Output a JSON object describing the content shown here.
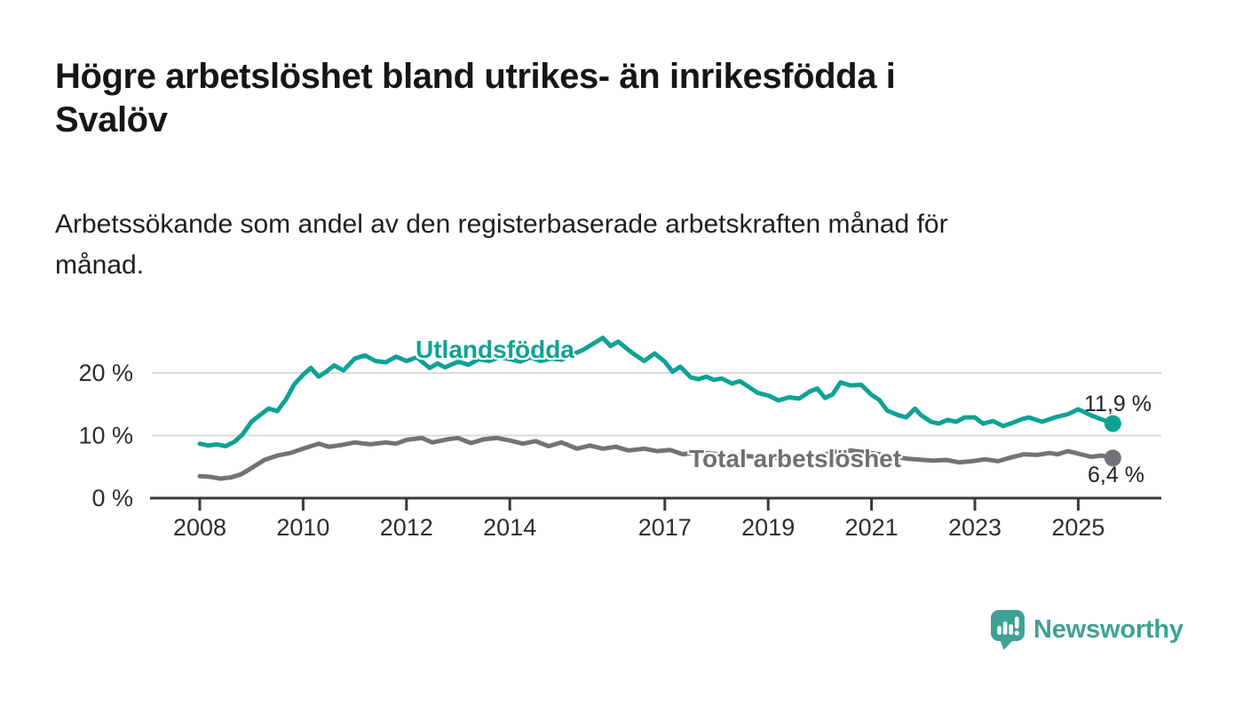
{
  "header": {
    "title_line1": "Högre arbetslöshet bland utrikes- än inrikesfödda i",
    "title_line2": "Svalöv",
    "subtitle_line1": "Arbetssökande som andel av den registerbaserade arbetskraften månad för",
    "subtitle_line2": "månad."
  },
  "chart_data": {
    "type": "line",
    "title": "Högre arbetslöshet bland utrikes- än inrikesfödda i Svalöv",
    "subtitle": "Arbetssökande som andel av den registerbaserade arbetskraften månad för månad.",
    "unit": "%",
    "grid": "horizontal",
    "x_axis": {
      "ticks": [
        {
          "year": 2008,
          "label": "2008"
        },
        {
          "year": 2010,
          "label": "2010"
        },
        {
          "year": 2012,
          "label": "2012"
        },
        {
          "year": 2014,
          "label": "2014"
        },
        {
          "year": 2017,
          "label": "2017"
        },
        {
          "year": 2019,
          "label": "2019"
        },
        {
          "year": 2021,
          "label": "2021"
        },
        {
          "year": 2023,
          "label": "2023"
        },
        {
          "year": 2025,
          "label": "2025"
        }
      ]
    },
    "y_axis": {
      "ticks": [
        {
          "value": 0,
          "label": "0 %"
        },
        {
          "value": 10,
          "label": "10 %"
        },
        {
          "value": 20,
          "label": "20 %"
        }
      ],
      "range": [
        0,
        27
      ]
    },
    "series": [
      {
        "name": "Utlandsfödda",
        "color": "#0FA294",
        "end_label": "11,9 %",
        "end_value": 11.9,
        "points": [
          [
            2008.0,
            8.7
          ],
          [
            2008.17,
            8.4
          ],
          [
            2008.33,
            8.6
          ],
          [
            2008.5,
            8.3
          ],
          [
            2008.67,
            9.0
          ],
          [
            2008.83,
            10.2
          ],
          [
            2009.0,
            12.2
          ],
          [
            2009.17,
            13.3
          ],
          [
            2009.33,
            14.3
          ],
          [
            2009.5,
            13.9
          ],
          [
            2009.67,
            15.8
          ],
          [
            2009.83,
            18.2
          ],
          [
            2010.0,
            19.7
          ],
          [
            2010.15,
            20.8
          ],
          [
            2010.3,
            19.4
          ],
          [
            2010.45,
            20.2
          ],
          [
            2010.6,
            21.2
          ],
          [
            2010.78,
            20.4
          ],
          [
            2011.0,
            22.3
          ],
          [
            2011.2,
            22.8
          ],
          [
            2011.4,
            21.9
          ],
          [
            2011.6,
            21.7
          ],
          [
            2011.8,
            22.6
          ],
          [
            2012.0,
            21.9
          ],
          [
            2012.2,
            22.5
          ],
          [
            2012.45,
            20.8
          ],
          [
            2012.6,
            21.5
          ],
          [
            2012.75,
            20.9
          ],
          [
            2013.0,
            21.8
          ],
          [
            2013.2,
            21.3
          ],
          [
            2013.4,
            22.2
          ],
          [
            2013.6,
            21.9
          ],
          [
            2013.8,
            22.5
          ],
          [
            2014.0,
            22.2
          ],
          [
            2014.2,
            21.8
          ],
          [
            2014.4,
            22.5
          ],
          [
            2014.6,
            21.9
          ],
          [
            2014.8,
            22.3
          ],
          [
            2015.0,
            22.1
          ],
          [
            2015.2,
            22.9
          ],
          [
            2015.4,
            23.6
          ],
          [
            2015.6,
            24.6
          ],
          [
            2015.8,
            25.6
          ],
          [
            2015.95,
            24.3
          ],
          [
            2016.1,
            25.0
          ],
          [
            2016.35,
            23.3
          ],
          [
            2016.6,
            21.9
          ],
          [
            2016.8,
            23.1
          ],
          [
            2017.0,
            21.8
          ],
          [
            2017.15,
            20.2
          ],
          [
            2017.3,
            21.0
          ],
          [
            2017.5,
            19.3
          ],
          [
            2017.65,
            19.0
          ],
          [
            2017.8,
            19.4
          ],
          [
            2017.95,
            18.9
          ],
          [
            2018.1,
            19.1
          ],
          [
            2018.3,
            18.3
          ],
          [
            2018.45,
            18.7
          ],
          [
            2018.6,
            17.9
          ],
          [
            2018.8,
            16.8
          ],
          [
            2019.0,
            16.4
          ],
          [
            2019.2,
            15.6
          ],
          [
            2019.4,
            16.1
          ],
          [
            2019.6,
            15.9
          ],
          [
            2019.8,
            17.0
          ],
          [
            2019.95,
            17.5
          ],
          [
            2020.1,
            16.0
          ],
          [
            2020.25,
            16.6
          ],
          [
            2020.4,
            18.5
          ],
          [
            2020.6,
            18.0
          ],
          [
            2020.8,
            18.1
          ],
          [
            2021.0,
            16.5
          ],
          [
            2021.15,
            15.7
          ],
          [
            2021.3,
            14.0
          ],
          [
            2021.5,
            13.3
          ],
          [
            2021.67,
            12.9
          ],
          [
            2021.84,
            14.3
          ],
          [
            2021.95,
            13.3
          ],
          [
            2022.15,
            12.2
          ],
          [
            2022.3,
            11.9
          ],
          [
            2022.47,
            12.5
          ],
          [
            2022.64,
            12.2
          ],
          [
            2022.8,
            12.9
          ],
          [
            2023.0,
            12.9
          ],
          [
            2023.16,
            11.9
          ],
          [
            2023.35,
            12.3
          ],
          [
            2023.55,
            11.5
          ],
          [
            2023.75,
            12.1
          ],
          [
            2023.9,
            12.6
          ],
          [
            2024.05,
            12.9
          ],
          [
            2024.3,
            12.2
          ],
          [
            2024.55,
            12.9
          ],
          [
            2024.8,
            13.4
          ],
          [
            2025.0,
            14.2
          ],
          [
            2025.25,
            13.2
          ],
          [
            2025.45,
            12.6
          ],
          [
            2025.67,
            11.9
          ]
        ]
      },
      {
        "name": "Total arbetslöshet",
        "color": "#737377",
        "end_label": "6,4 %",
        "end_value": 6.4,
        "points": [
          [
            2008.0,
            3.5
          ],
          [
            2008.2,
            3.4
          ],
          [
            2008.4,
            3.1
          ],
          [
            2008.6,
            3.3
          ],
          [
            2008.8,
            3.8
          ],
          [
            2009.0,
            4.8
          ],
          [
            2009.25,
            6.1
          ],
          [
            2009.5,
            6.8
          ],
          [
            2009.75,
            7.2
          ],
          [
            2010.0,
            7.9
          ],
          [
            2010.3,
            8.7
          ],
          [
            2010.5,
            8.2
          ],
          [
            2010.75,
            8.5
          ],
          [
            2011.0,
            8.9
          ],
          [
            2011.3,
            8.6
          ],
          [
            2011.6,
            8.9
          ],
          [
            2011.8,
            8.7
          ],
          [
            2012.0,
            9.3
          ],
          [
            2012.3,
            9.6
          ],
          [
            2012.5,
            8.9
          ],
          [
            2012.8,
            9.4
          ],
          [
            2013.0,
            9.6
          ],
          [
            2013.25,
            8.8
          ],
          [
            2013.5,
            9.4
          ],
          [
            2013.75,
            9.6
          ],
          [
            2014.0,
            9.2
          ],
          [
            2014.25,
            8.7
          ],
          [
            2014.5,
            9.1
          ],
          [
            2014.75,
            8.3
          ],
          [
            2015.0,
            8.9
          ],
          [
            2015.3,
            7.9
          ],
          [
            2015.55,
            8.4
          ],
          [
            2015.8,
            7.9
          ],
          [
            2016.05,
            8.2
          ],
          [
            2016.3,
            7.6
          ],
          [
            2016.6,
            7.9
          ],
          [
            2016.85,
            7.5
          ],
          [
            2017.1,
            7.7
          ],
          [
            2017.35,
            7.0
          ],
          [
            2017.6,
            7.3
          ],
          [
            2017.9,
            7.1
          ],
          [
            2018.2,
            6.9
          ],
          [
            2018.6,
            6.7
          ],
          [
            2019.0,
            6.5
          ],
          [
            2019.5,
            6.4
          ],
          [
            2019.9,
            6.6
          ],
          [
            2020.3,
            7.4
          ],
          [
            2020.6,
            7.6
          ],
          [
            2020.9,
            7.3
          ],
          [
            2021.3,
            6.8
          ],
          [
            2021.7,
            6.3
          ],
          [
            2022.0,
            6.1
          ],
          [
            2022.2,
            6.0
          ],
          [
            2022.45,
            6.1
          ],
          [
            2022.7,
            5.7
          ],
          [
            2022.95,
            5.9
          ],
          [
            2023.2,
            6.2
          ],
          [
            2023.45,
            5.9
          ],
          [
            2023.7,
            6.5
          ],
          [
            2023.95,
            7.0
          ],
          [
            2024.2,
            6.9
          ],
          [
            2024.45,
            7.2
          ],
          [
            2024.6,
            7.0
          ],
          [
            2024.8,
            7.5
          ],
          [
            2025.0,
            7.1
          ],
          [
            2025.25,
            6.6
          ],
          [
            2025.45,
            6.8
          ],
          [
            2025.67,
            6.4
          ]
        ]
      }
    ]
  },
  "branding": {
    "logo_text": "Newsworthy",
    "logo_color": "#3FA195"
  },
  "colors": {
    "accent_teal": "#0FA294",
    "series_gray": "#737377",
    "grid": "#DBDBDB",
    "axis": "#3A3A3A",
    "text": "#1F1F1F"
  }
}
